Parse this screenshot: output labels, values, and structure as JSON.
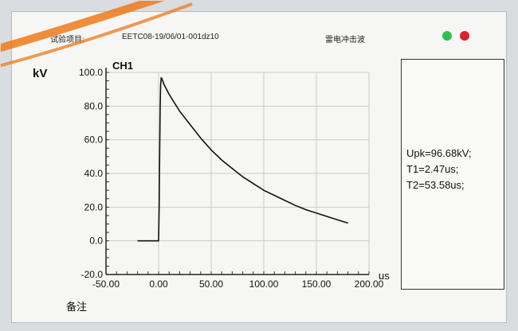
{
  "header": {
    "test_item_label": "试验项目:",
    "test_id": "EETC08-19/06/01-001dz10",
    "waveform_type": "雷电冲击波"
  },
  "status": {
    "led1_color": "#2fbf4c",
    "led2_color": "#e0202a"
  },
  "notes_label": "备注",
  "results": {
    "upk": "Upk=96.68kV;",
    "t1": "T1=2.47us;",
    "t2": "T2=53.58us;"
  },
  "chart_data": {
    "type": "line",
    "channel_label": "CH1",
    "xlabel": "us",
    "ylabel": "kV",
    "xlim": [
      -50,
      200
    ],
    "ylim": [
      -20,
      100
    ],
    "x_tick_labels": [
      "-50.00",
      "0.00",
      "50.00",
      "100.00",
      "150.00",
      "200.00"
    ],
    "y_tick_labels": [
      "-20.0",
      "0.0",
      "20.0",
      "40.0",
      "60.0",
      "80.0",
      "100.0"
    ],
    "grid": true,
    "series": [
      {
        "x": [
          -20,
          -5,
          0,
          0.5,
          1,
          1.5,
          2,
          2.47,
          3,
          5,
          10,
          20,
          30,
          40,
          50,
          60,
          70,
          80,
          90,
          100,
          110,
          120,
          130,
          140,
          150,
          160,
          170,
          180
        ],
        "y": [
          0,
          0,
          0,
          20,
          50,
          80,
          93,
          96.68,
          96.5,
          93,
          87,
          77,
          69,
          61,
          54,
          48,
          43,
          38,
          34,
          30,
          27,
          24,
          21,
          18.5,
          16.5,
          14.5,
          12.5,
          10.5
        ]
      }
    ]
  }
}
